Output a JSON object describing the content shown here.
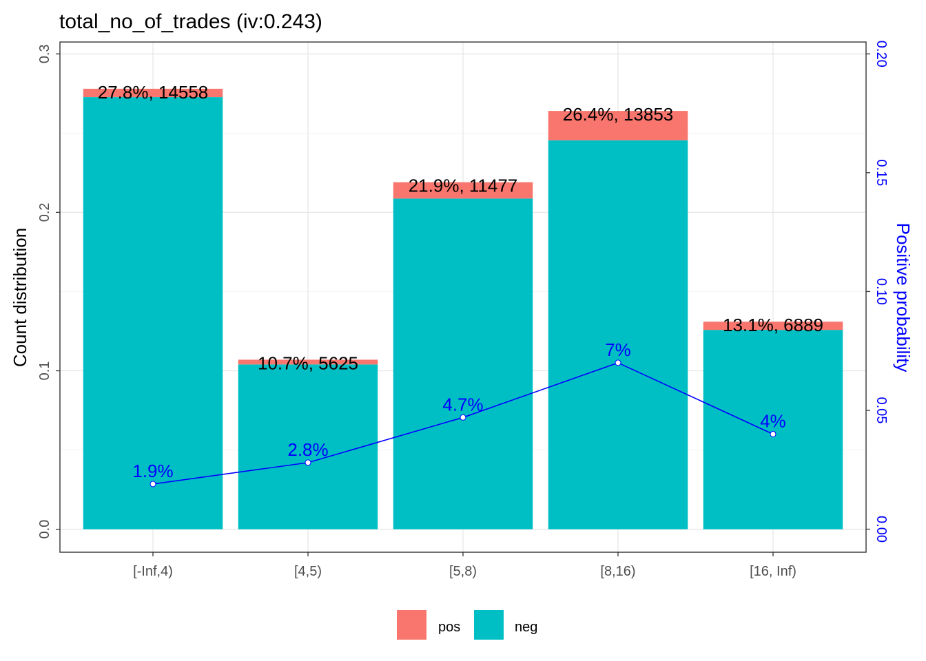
{
  "chart_data": {
    "type": "bar",
    "title": "total_no_of_trades  (iv:0.243)",
    "ylabel": "Count distribution",
    "y2label": "Positive probability",
    "ylim": [
      -0.0145,
      0.3075
    ],
    "y2lim": [
      -0.0097,
      0.205
    ],
    "yticks": [
      "0.0",
      "0.1",
      "0.2",
      "0.3"
    ],
    "yticks_values": [
      0,
      0.1,
      0.2,
      0.3
    ],
    "y2ticks": [
      "0.00",
      "0.05",
      "0.10",
      "0.15",
      "0.20"
    ],
    "y2ticks_values": [
      0,
      0.05,
      0.1,
      0.15,
      0.2
    ],
    "categories": [
      "[-Inf,4)",
      "[4,5)",
      "[5,8)",
      "[8,16)",
      "[16, Inf)"
    ],
    "series": [
      {
        "name": "pos",
        "color": "#F8766D",
        "values": [
          0.0053,
          0.003,
          0.0103,
          0.0185,
          0.0052
        ]
      },
      {
        "name": "neg",
        "color": "#00BFC4",
        "values": [
          0.2727,
          0.104,
          0.2087,
          0.2455,
          0.1258
        ]
      }
    ],
    "bar_labels": [
      "27.8%, 14558",
      "10.7%, 5625",
      "21.9%, 11477",
      "26.4%, 13853",
      "13.1%, 6889"
    ],
    "positive_probability": {
      "values": [
        0.019,
        0.028,
        0.047,
        0.07,
        0.04
      ],
      "labels": [
        "1.9%",
        "2.8%",
        "4.7%",
        "7%",
        "4%"
      ],
      "color": "#0000FF"
    },
    "legend": {
      "position": "bottom",
      "entries": [
        "pos",
        "neg"
      ]
    },
    "grid": true
  }
}
